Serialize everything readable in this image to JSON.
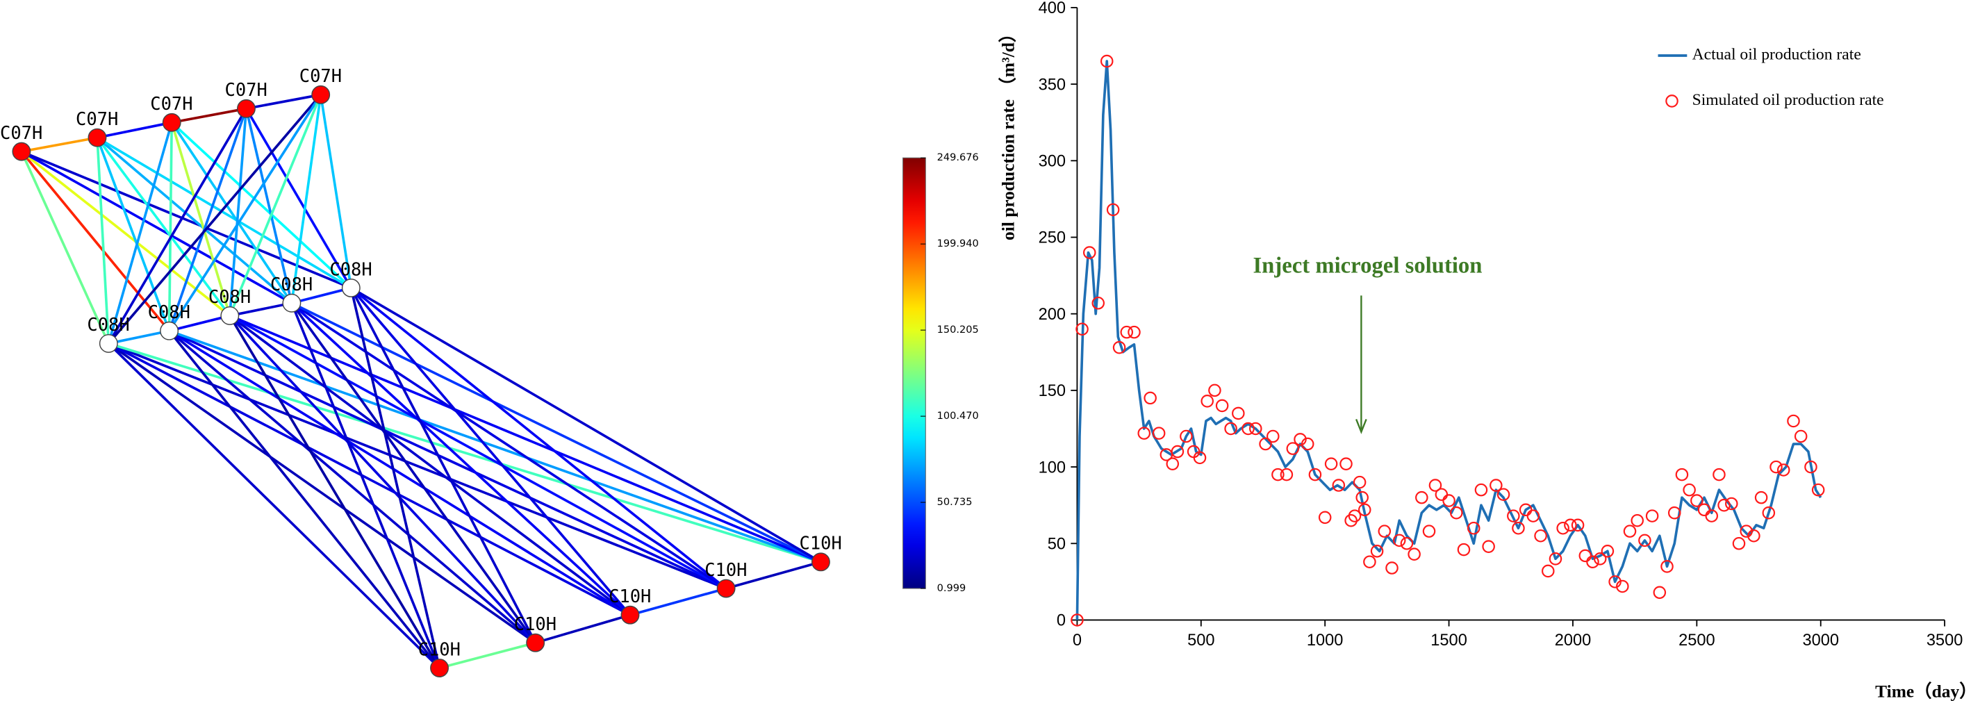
{
  "chart_data": [
    {
      "type": "network",
      "nodes": [
        {
          "label": "C07H",
          "color": "#ff0000"
        },
        {
          "label": "C07H",
          "color": "#ff0000"
        },
        {
          "label": "C07H",
          "color": "#ff0000"
        },
        {
          "label": "C07H",
          "color": "#ff0000"
        },
        {
          "label": "C07H",
          "color": "#ff0000"
        },
        {
          "label": "C08H",
          "color": "#ffffff"
        },
        {
          "label": "C08H",
          "color": "#ffffff"
        },
        {
          "label": "C08H",
          "color": "#ffffff"
        },
        {
          "label": "C08H",
          "color": "#ffffff"
        },
        {
          "label": "C08H",
          "color": "#ffffff"
        },
        {
          "label": "C10H",
          "color": "#ff0000"
        },
        {
          "label": "C10H",
          "color": "#ff0000"
        },
        {
          "label": "C10H",
          "color": "#ff0000"
        },
        {
          "label": "C10H",
          "color": "#ff0000"
        },
        {
          "label": "C10H",
          "color": "#ff0000"
        }
      ],
      "edges": [
        {
          "source": 0,
          "target": 1,
          "value": 180
        },
        {
          "source": 1,
          "target": 2,
          "value": 30
        },
        {
          "source": 2,
          "target": 3,
          "value": 245
        },
        {
          "source": 3,
          "target": 4,
          "value": 20
        },
        {
          "source": 5,
          "target": 6,
          "value": 70
        },
        {
          "source": 6,
          "target": 7,
          "value": 30
        },
        {
          "source": 7,
          "target": 8,
          "value": 20
        },
        {
          "source": 8,
          "target": 9,
          "value": 40
        },
        {
          "source": 10,
          "target": 11,
          "value": 120
        },
        {
          "source": 11,
          "target": 12,
          "value": 15
        },
        {
          "source": 12,
          "target": 13,
          "value": 45
        },
        {
          "source": 13,
          "target": 14,
          "value": 15
        },
        {
          "source": 0,
          "target": 5,
          "value": 120
        },
        {
          "source": 0,
          "target": 6,
          "value": 210
        },
        {
          "source": 0,
          "target": 7,
          "value": 150
        },
        {
          "source": 0,
          "target": 8,
          "value": 30
        },
        {
          "source": 0,
          "target": 9,
          "value": 20
        },
        {
          "source": 1,
          "target": 5,
          "value": 110
        },
        {
          "source": 1,
          "target": 6,
          "value": 80
        },
        {
          "source": 1,
          "target": 7,
          "value": 100
        },
        {
          "source": 1,
          "target": 8,
          "value": 75
        },
        {
          "source": 1,
          "target": 9,
          "value": 85
        },
        {
          "source": 2,
          "target": 5,
          "value": 70
        },
        {
          "source": 2,
          "target": 6,
          "value": 110
        },
        {
          "source": 2,
          "target": 7,
          "value": 140
        },
        {
          "source": 2,
          "target": 8,
          "value": 80
        },
        {
          "source": 2,
          "target": 9,
          "value": 95
        },
        {
          "source": 3,
          "target": 5,
          "value": 20
        },
        {
          "source": 3,
          "target": 6,
          "value": 60
        },
        {
          "source": 3,
          "target": 7,
          "value": 70
        },
        {
          "source": 3,
          "target": 8,
          "value": 65
        },
        {
          "source": 3,
          "target": 9,
          "value": 35
        },
        {
          "source": 4,
          "target": 5,
          "value": 10
        },
        {
          "source": 4,
          "target": 6,
          "value": 70
        },
        {
          "source": 4,
          "target": 7,
          "value": 110
        },
        {
          "source": 4,
          "target": 8,
          "value": 85
        },
        {
          "source": 4,
          "target": 9,
          "value": 80
        },
        {
          "source": 5,
          "target": 10,
          "value": 20
        },
        {
          "source": 5,
          "target": 11,
          "value": 15
        },
        {
          "source": 5,
          "target": 12,
          "value": 25
        },
        {
          "source": 5,
          "target": 13,
          "value": 20
        },
        {
          "source": 5,
          "target": 14,
          "value": 110
        },
        {
          "source": 6,
          "target": 10,
          "value": 15
        },
        {
          "source": 6,
          "target": 11,
          "value": 20
        },
        {
          "source": 6,
          "target": 12,
          "value": 30
        },
        {
          "source": 6,
          "target": 13,
          "value": 25
        },
        {
          "source": 6,
          "target": 14,
          "value": 70
        },
        {
          "source": 7,
          "target": 10,
          "value": 10
        },
        {
          "source": 7,
          "target": 11,
          "value": 25
        },
        {
          "source": 7,
          "target": 12,
          "value": 20
        },
        {
          "source": 7,
          "target": 13,
          "value": 35
        },
        {
          "source": 7,
          "target": 14,
          "value": 30
        },
        {
          "source": 8,
          "target": 10,
          "value": 20
        },
        {
          "source": 8,
          "target": 11,
          "value": 15
        },
        {
          "source": 8,
          "target": 12,
          "value": 30
        },
        {
          "source": 8,
          "target": 13,
          "value": 25
        },
        {
          "source": 8,
          "target": 14,
          "value": 45
        },
        {
          "source": 9,
          "target": 10,
          "value": 15
        },
        {
          "source": 9,
          "target": 11,
          "value": 20
        },
        {
          "source": 9,
          "target": 12,
          "value": 25
        },
        {
          "source": 9,
          "target": 13,
          "value": 30
        },
        {
          "source": 9,
          "target": 14,
          "value": 20
        }
      ],
      "colorbar": {
        "lim": [
          0.999,
          249.676
        ],
        "ticks": [
          0.999,
          50.735,
          {
            "value": 100.47,
            "label": "100.470"
          },
          150.205,
          {
            "value": 199.94,
            "label": "199.940"
          },
          249.676
        ]
      }
    },
    {
      "type": "line",
      "xlabel": "Time（day）",
      "ylabel": "oil production rate （m³/d）",
      "annotation": "Inject microgel solution",
      "xlim": [
        0,
        3500
      ],
      "xticks": [
        0,
        500,
        1000,
        1500,
        2000,
        2500,
        3000,
        3500
      ],
      "ylim": [
        0,
        400
      ],
      "yticks": [
        0,
        50,
        100,
        150,
        200,
        250,
        300,
        350,
        400
      ],
      "legend": "upper right",
      "series": [
        {
          "name": "Actual oil production rate",
          "type": "line",
          "color": "#1f6fb4",
          "x": [
            0,
            10,
            25,
            45,
            60,
            75,
            90,
            105,
            120,
            135,
            150,
            165,
            185,
            210,
            230,
            250,
            270,
            290,
            310,
            340,
            360,
            380,
            400,
            420,
            440,
            460,
            480,
            500,
            520,
            540,
            560,
            580,
            600,
            620,
            640,
            660,
            690,
            720,
            750,
            780,
            810,
            840,
            870,
            900,
            930,
            960,
            990,
            1020,
            1050,
            1080,
            1110,
            1140,
            1160,
            1190,
            1220,
            1250,
            1280,
            1300,
            1330,
            1360,
            1390,
            1420,
            1450,
            1480,
            1510,
            1540,
            1570,
            1600,
            1630,
            1660,
            1690,
            1720,
            1750,
            1780,
            1810,
            1840,
            1870,
            1900,
            1930,
            1960,
            1990,
            2020,
            2050,
            2080,
            2110,
            2140,
            2170,
            2200,
            2230,
            2260,
            2290,
            2320,
            2350,
            2380,
            2410,
            2440,
            2470,
            2500,
            2530,
            2560,
            2590,
            2620,
            2650,
            2680,
            2710,
            2740,
            2770,
            2800,
            2830,
            2860,
            2890,
            2920,
            2950,
            2980,
            3000
          ],
          "values": [
            0,
            120,
            200,
            240,
            235,
            200,
            230,
            330,
            365,
            320,
            240,
            185,
            175,
            178,
            180,
            150,
            125,
            130,
            120,
            112,
            110,
            108,
            110,
            112,
            120,
            125,
            110,
            108,
            130,
            132,
            128,
            130,
            132,
            130,
            122,
            125,
            128,
            125,
            120,
            115,
            110,
            100,
            105,
            115,
            110,
            95,
            90,
            85,
            88,
            85,
            90,
            85,
            70,
            50,
            45,
            55,
            50,
            65,
            55,
            50,
            70,
            75,
            72,
            75,
            70,
            80,
            65,
            50,
            75,
            65,
            85,
            80,
            70,
            60,
            72,
            75,
            65,
            55,
            40,
            45,
            55,
            62,
            55,
            40,
            42,
            45,
            25,
            35,
            50,
            45,
            52,
            45,
            55,
            35,
            50,
            80,
            75,
            72,
            80,
            70,
            85,
            78,
            72,
            60,
            55,
            62,
            60,
            75,
            95,
            100,
            115,
            115,
            110,
            85,
            80
          ]
        },
        {
          "name": "Simulated oil production rate",
          "type": "scatter",
          "color": "#ff1a1a",
          "x": [
            0,
            20,
            50,
            85,
            120,
            145,
            170,
            200,
            230,
            270,
            295,
            330,
            360,
            385,
            405,
            440,
            470,
            495,
            525,
            555,
            585,
            620,
            650,
            690,
            720,
            760,
            790,
            810,
            845,
            870,
            900,
            930,
            960,
            1000,
            1025,
            1055,
            1085,
            1105,
            1120,
            1140,
            1150,
            1160,
            1180,
            1210,
            1240,
            1270,
            1300,
            1330,
            1360,
            1390,
            1420,
            1445,
            1470,
            1500,
            1530,
            1560,
            1600,
            1630,
            1660,
            1690,
            1720,
            1760,
            1780,
            1810,
            1840,
            1870,
            1900,
            1930,
            1960,
            1990,
            2020,
            2050,
            2080,
            2110,
            2140,
            2170,
            2200,
            2230,
            2260,
            2290,
            2320,
            2350,
            2380,
            2410,
            2440,
            2470,
            2500,
            2530,
            2560,
            2590,
            2610,
            2640,
            2670,
            2700,
            2730,
            2760,
            2790,
            2820,
            2850,
            2890,
            2920,
            2960,
            2990
          ],
          "values": [
            0,
            190,
            240,
            207,
            365,
            268,
            178,
            188,
            188,
            122,
            145,
            122,
            108,
            102,
            110,
            120,
            110,
            106,
            143,
            150,
            140,
            125,
            135,
            125,
            125,
            115,
            120,
            95,
            95,
            112,
            118,
            115,
            95,
            67,
            102,
            88,
            102,
            65,
            68,
            90,
            80,
            72,
            38,
            45,
            58,
            34,
            52,
            50,
            43,
            80,
            58,
            88,
            82,
            78,
            70,
            46,
            60,
            85,
            48,
            88,
            82,
            68,
            60,
            72,
            68,
            55,
            32,
            40,
            60,
            62,
            62,
            42,
            38,
            40,
            45,
            25,
            22,
            58,
            65,
            52,
            68,
            18,
            35,
            70,
            95,
            85,
            78,
            72,
            68,
            95,
            75,
            76,
            50,
            58,
            55,
            80,
            70,
            100,
            98,
            130,
            120,
            100,
            85
          ]
        }
      ]
    }
  ]
}
